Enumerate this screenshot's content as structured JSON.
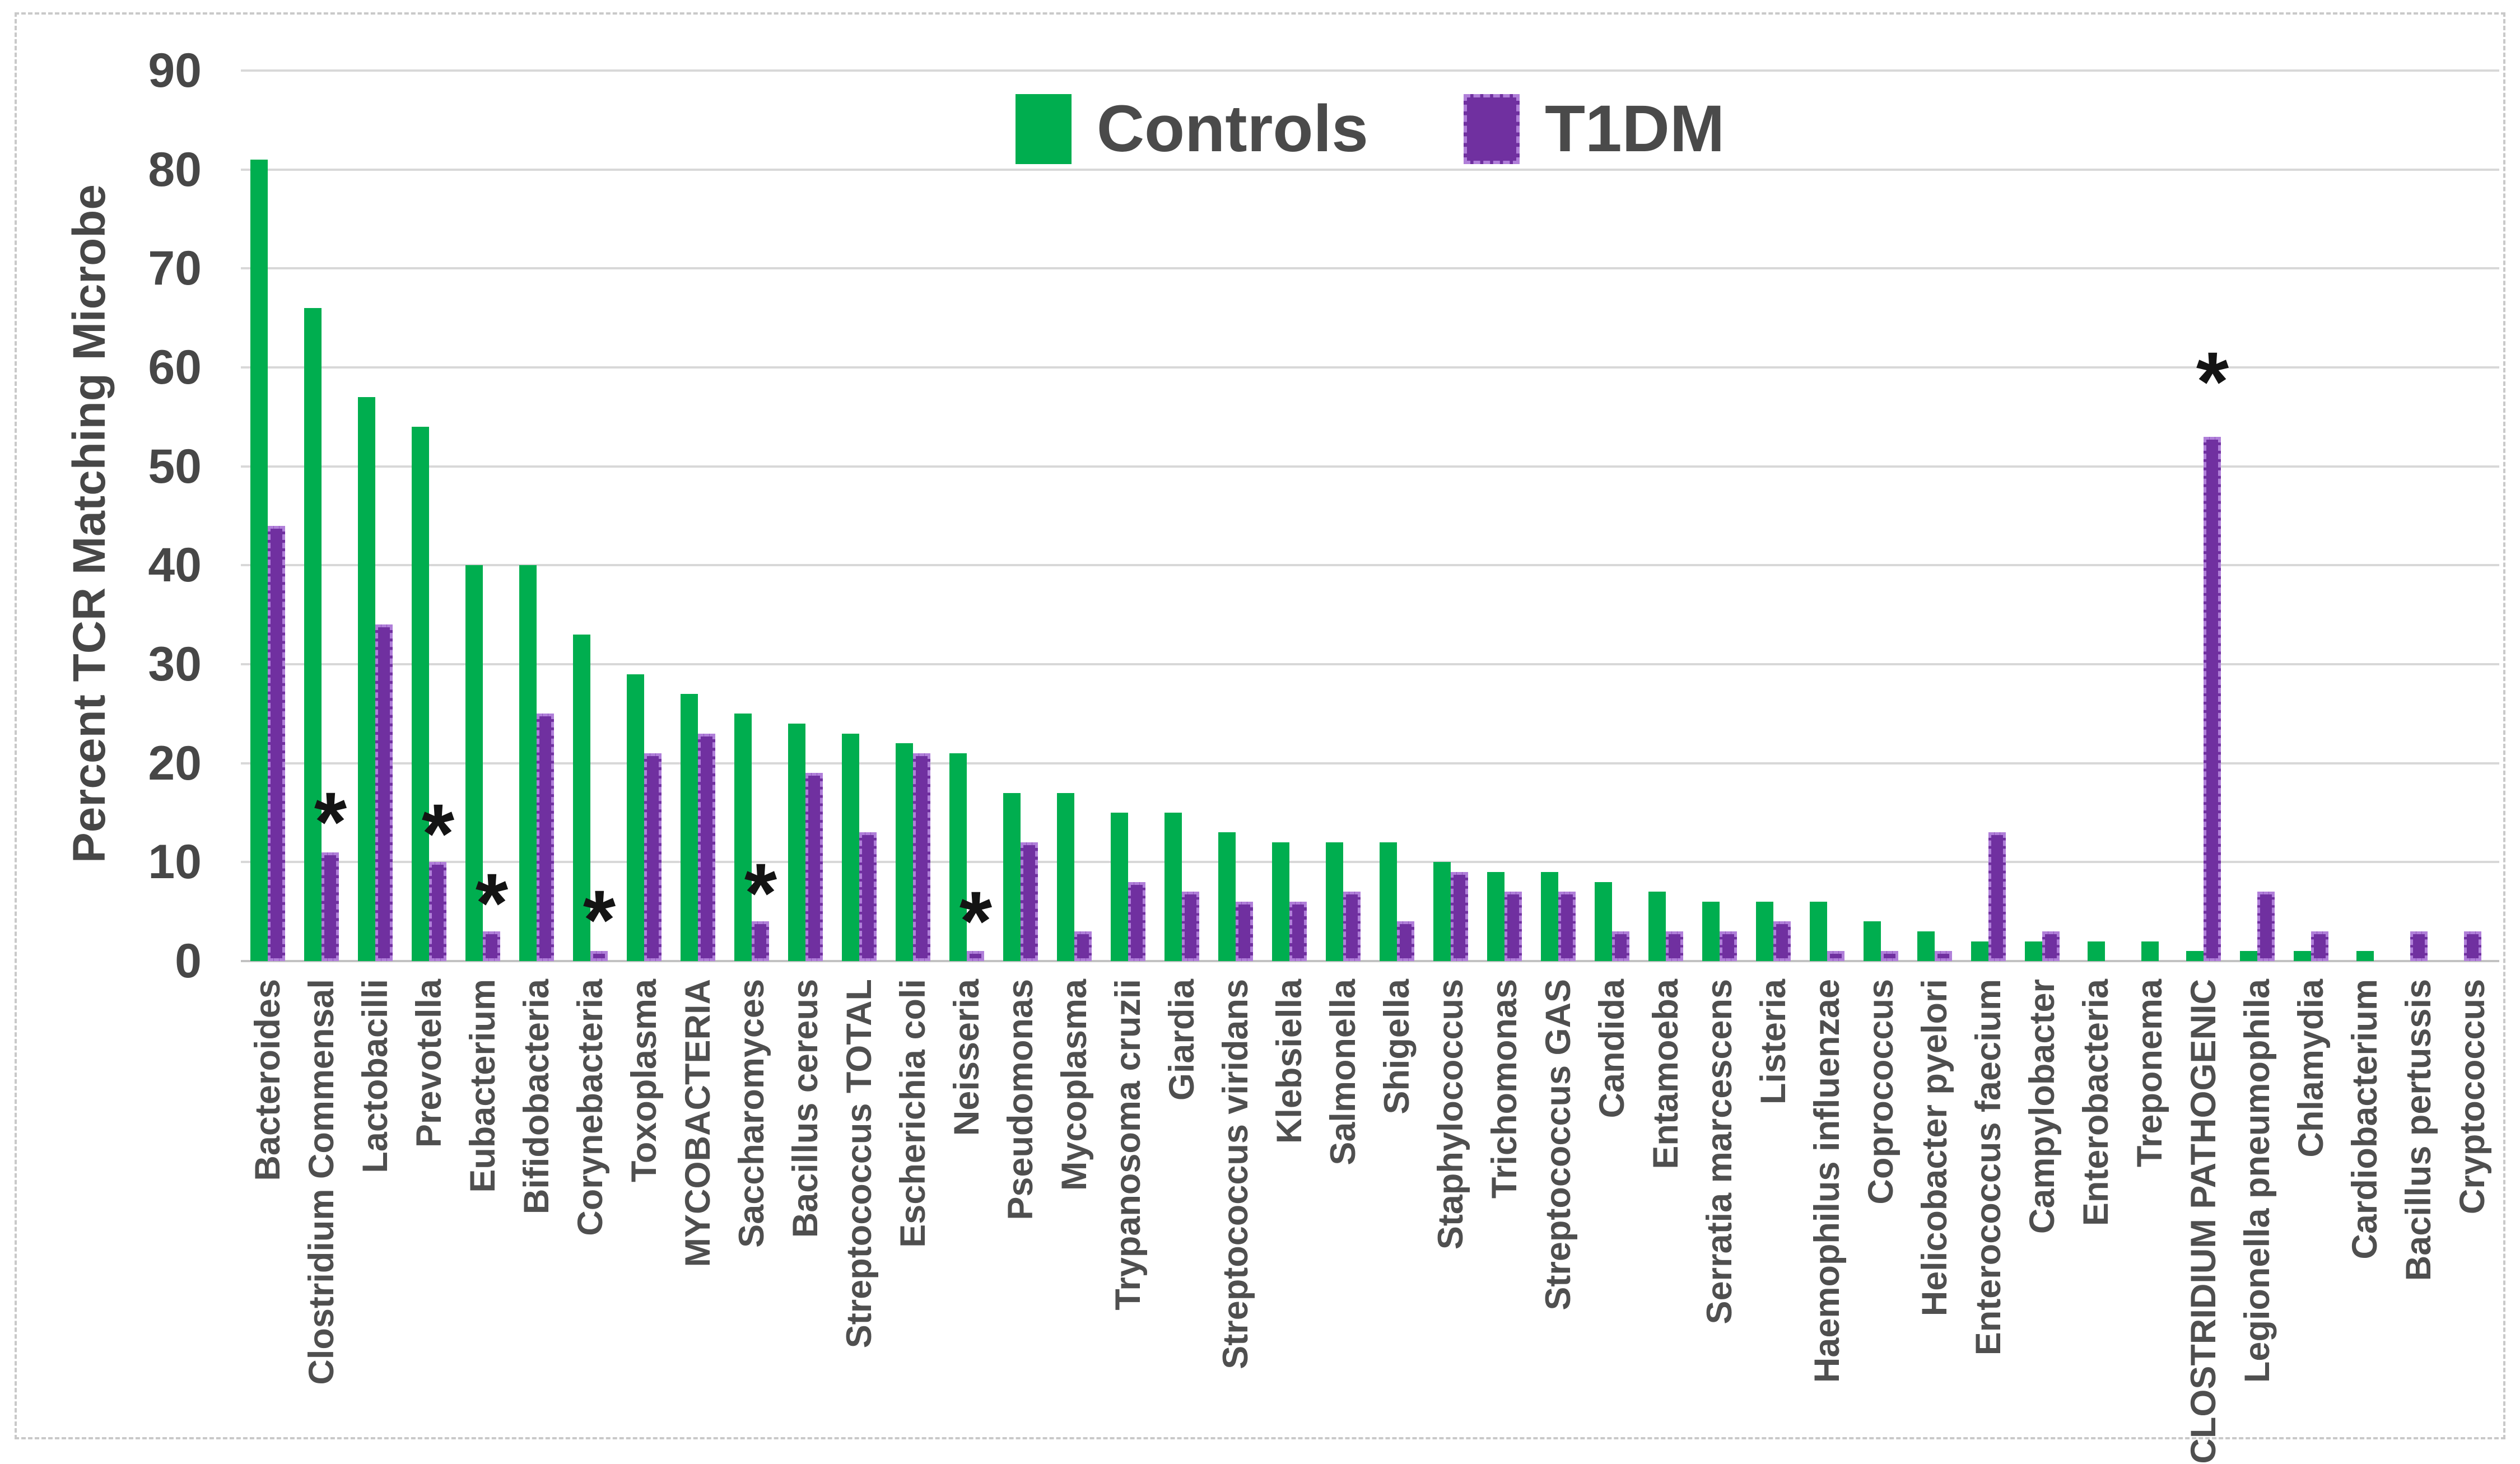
{
  "figure": {
    "background": "#ffffff",
    "border_color": "#c9c9c9",
    "grid_color": "#d8d8d8",
    "axis_color": "#c2c2c2",
    "text_color": "#474747",
    "marker_glyph": "*",
    "marker_color": "#141414"
  },
  "chart_data": {
    "type": "bar",
    "title": "",
    "xlabel": "",
    "ylabel": "Percent TCR Matching Microbe",
    "ylim": [
      0,
      90
    ],
    "yticks": [
      0,
      10,
      20,
      30,
      40,
      50,
      60,
      70,
      80,
      90
    ],
    "grid": true,
    "legend_position": "top-center",
    "categories": [
      "Bacteroides",
      "Clostridium Commensal",
      "Lactobacilli",
      "Prevotella",
      "Eubacterium",
      "Bifidobacteria",
      "Corynebacteria",
      "Toxoplasma",
      "MYCOBACTERIA",
      "Saccharomyces",
      "Bacillus cereus",
      "Streptococcus TOTAL",
      "Escherichia coli",
      "Neisseria",
      "Pseudomonas",
      "Mycoplasma",
      "Trypanosoma cruzii",
      "Giardia",
      "Streptococcus viridans",
      "Klebsiella",
      "Salmonella",
      "Shigella",
      "Staphylococcus",
      "Trichomonas",
      "Streptococcus  GAS",
      "Candida",
      "Entamoeba",
      "Serratia marcescens",
      "Listeria",
      "Haemophilus influenzae",
      "Coprococcus",
      "Helicobacter pyelori",
      "Enterococcus faecium",
      "Campylobacter",
      "Enterobacteria",
      "Treponema",
      "CLOSTRIDIUM PATHOGENIC",
      "Legionella pneumophila",
      "Chlamydia",
      "Cardiobacterium",
      "Bacillus pertussis",
      "Cryptococcus"
    ],
    "series": [
      {
        "name": "Controls",
        "color": "#00ae4f",
        "style": "solid",
        "values": [
          81,
          66,
          57,
          54,
          40,
          40,
          33,
          29,
          27,
          25,
          24,
          23,
          22,
          21,
          17,
          17,
          15,
          15,
          13,
          12,
          12,
          12,
          10,
          9,
          9,
          8,
          7,
          6,
          6,
          6,
          4,
          3,
          2,
          2,
          2,
          2,
          1,
          1,
          1,
          1,
          0,
          0
        ]
      },
      {
        "name": "T1DM",
        "color": "#7030a0",
        "style": "dashed",
        "values": [
          44,
          11,
          34,
          10,
          3,
          25,
          1,
          21,
          23,
          4,
          19,
          13,
          21,
          1,
          12,
          3,
          8,
          7,
          6,
          6,
          7,
          4,
          9,
          7,
          7,
          3,
          3,
          3,
          4,
          1,
          1,
          1,
          13,
          3,
          0,
          0,
          53,
          7,
          3,
          0,
          3,
          3
        ]
      }
    ],
    "significance_markers": [
      {
        "category": "Clostridium Commensal",
        "index": 1,
        "y": 15.5
      },
      {
        "category": "Prevotella",
        "index": 3,
        "y": 14.3
      },
      {
        "category": "Eubacterium",
        "index": 4,
        "y": 7.3
      },
      {
        "category": "Corynebacteria",
        "index": 6,
        "y": 5.6
      },
      {
        "category": "Saccharomyces",
        "index": 9,
        "y": 8.3
      },
      {
        "category": "Neisseria",
        "index": 13,
        "y": 5.5
      },
      {
        "category": "CLOSTRIDIUM PATHOGENIC",
        "index": 36,
        "y": 60
      }
    ]
  }
}
